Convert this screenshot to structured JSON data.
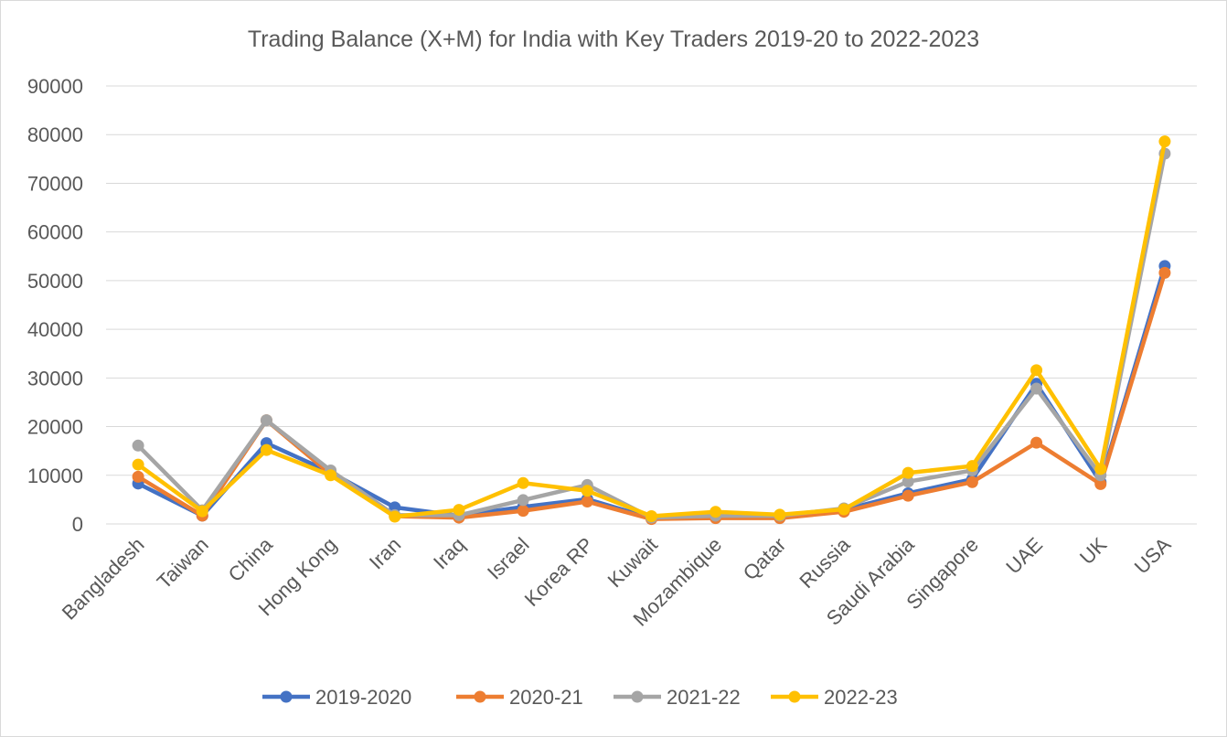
{
  "chart_data": {
    "type": "line",
    "title": "Trading Balance (X+M) for India with Key Traders 2019-20 to 2022-2023",
    "xlabel": "",
    "ylabel": "",
    "ylim": [
      0,
      90000
    ],
    "yticks": [
      "0",
      "10000",
      "20000",
      "30000",
      "40000",
      "50000",
      "60000",
      "70000",
      "80000",
      "90000"
    ],
    "grid": true,
    "legend_position": "bottom",
    "categories": [
      "Bangladesh",
      "Taiwan",
      "China",
      "Hong Kong",
      "Iran",
      "Iraq",
      "Israel",
      "Korea RP",
      "Kuwait",
      "Mozambique",
      "Qatar",
      "Russia",
      "Saudi Arabia",
      "Singapore",
      "UAE",
      "UK",
      "USA"
    ],
    "series": [
      {
        "name": "2019-2020",
        "color": "#4472C4",
        "values": [
          8300,
          1700,
          16600,
          10600,
          3400,
          1700,
          3500,
          5100,
          1200,
          1500,
          1500,
          2900,
          6300,
          9200,
          28800,
          8600,
          53000
        ]
      },
      {
        "name": "2020-21",
        "color": "#ED7D31",
        "values": [
          9700,
          1700,
          21300,
          10200,
          1600,
          1300,
          2700,
          4600,
          1000,
          1200,
          1200,
          2500,
          5800,
          8600,
          16700,
          8200,
          51600
        ]
      },
      {
        "name": "2021-22",
        "color": "#A5A5A5",
        "values": [
          16100,
          2800,
          21300,
          11000,
          1800,
          1800,
          4900,
          8000,
          1300,
          1700,
          1700,
          3200,
          8700,
          11000,
          27800,
          10000,
          76100
        ]
      },
      {
        "name": "2022-23",
        "color": "#FFC000",
        "values": [
          12200,
          2600,
          15200,
          10000,
          1500,
          2900,
          8400,
          6800,
          1600,
          2500,
          1900,
          3000,
          10500,
          11900,
          31600,
          11300,
          78600
        ]
      }
    ]
  }
}
